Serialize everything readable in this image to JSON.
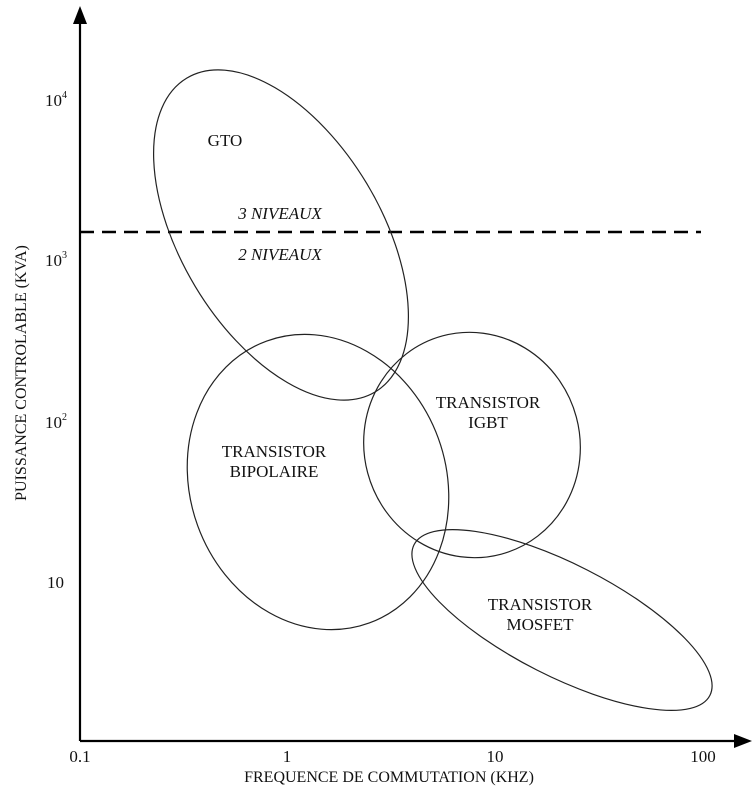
{
  "axes": {
    "x_label": "FREQUENCE DE COMMUTATION (KHZ)",
    "y_label": "PUISSANCE CONTROLABLE (KVA)",
    "x_ticks": [
      "0.1",
      "1",
      "10",
      "100"
    ],
    "y_ticks": [
      {
        "base": "10",
        "exp": "4"
      },
      {
        "base": "10",
        "exp": "3"
      },
      {
        "base": "10",
        "exp": "2"
      },
      {
        "base": "10",
        "exp": ""
      }
    ]
  },
  "levels": {
    "upper": "3 NIVEAUX",
    "lower": "2 NIVEAUX"
  },
  "regions": {
    "gto": [
      "GTO"
    ],
    "bipolaire": [
      "TRANSISTOR",
      "BIPOLAIRE"
    ],
    "igbt": [
      "TRANSISTOR",
      "IGBT"
    ],
    "mosfet": [
      "TRANSISTOR",
      "MOSFET"
    ]
  }
}
